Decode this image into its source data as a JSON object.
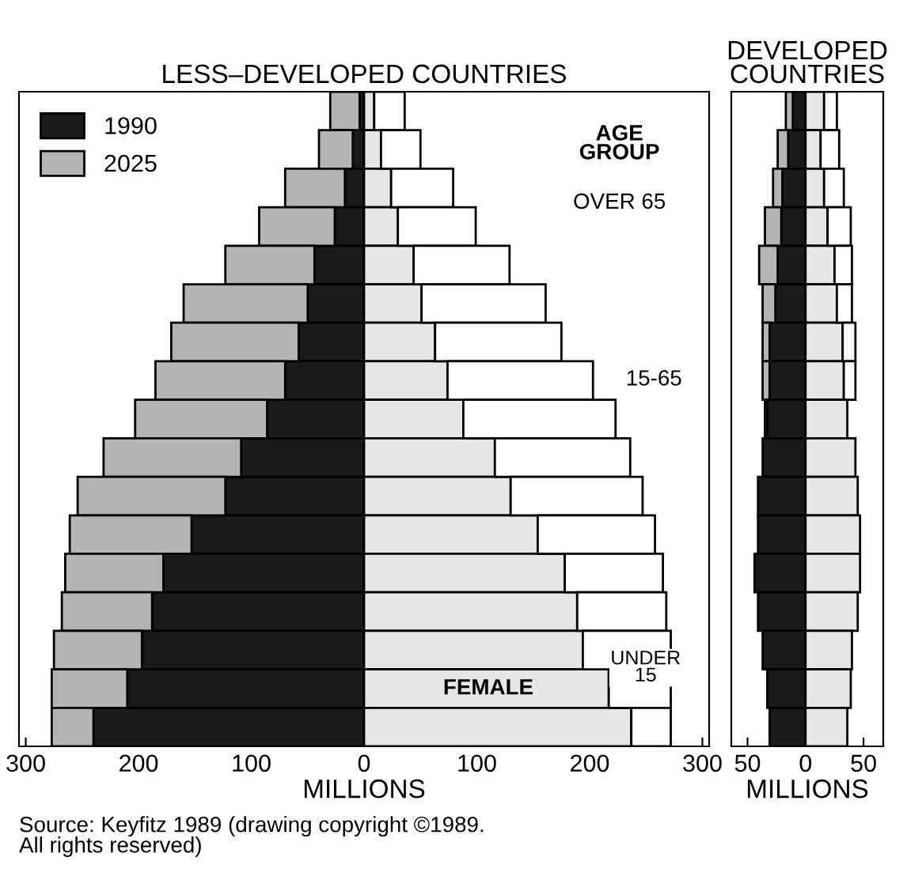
{
  "chart_data": [
    {
      "type": "bar",
      "orientation": "horizontal",
      "title": "LESS–DEVELOPED COUNTRIES",
      "xlabel": "MILLIONS",
      "categories": [
        null,
        null,
        null,
        null,
        null,
        null,
        null,
        null,
        null,
        null,
        null,
        null,
        null,
        null,
        null,
        null,
        null
      ],
      "series": [
        {
          "name": "1990",
          "color": "#1a1a1a",
          "values": [
            -4,
            -10,
            -17,
            -26,
            -44,
            -50,
            -58,
            -70,
            -86,
            -109,
            -123,
            -153,
            -178,
            -188,
            -197,
            -210,
            -240
          ]
        },
        {
          "name": "2025",
          "color": "#b4b4b4",
          "values": [
            -26,
            -30,
            -53,
            -67,
            -79,
            -110,
            -113,
            -115,
            -117,
            -122,
            -131,
            -108,
            -87,
            -80,
            -78,
            -67,
            -37
          ]
        },
        {
          "color": "#e6e6e6",
          "values": [
            9,
            15,
            24,
            30,
            44,
            51,
            63,
            74,
            88,
            116,
            130,
            154,
            178,
            189,
            194,
            217,
            237
          ]
        },
        {
          "color": "#ffffff",
          "values": [
            27,
            35,
            55,
            69,
            85,
            110,
            112,
            129,
            135,
            120,
            117,
            104,
            87,
            79,
            78,
            55,
            35
          ]
        }
      ],
      "stacked": true,
      "xlim": [
        -306,
        306
      ],
      "xticks": [
        {
          "value": -300,
          "label": "300"
        },
        {
          "value": -200,
          "label": "200"
        },
        {
          "value": -100,
          "label": "100"
        },
        0,
        100,
        200,
        300
      ],
      "tick_labels": "x",
      "grid": false,
      "legend": "top left",
      "annotations": [
        "AGE\nGROUP",
        "OVER 65",
        "15-65",
        "UNDER\n15",
        "FEMALE",
        "Source: Keyfitz 1989 (drawing copyright ©1989.\nAll rights reserved)"
      ]
    },
    {
      "type": "bar",
      "orientation": "horizontal",
      "title": "DEVELOPED\nCOUNTRIES",
      "xlabel": "MILLIONS",
      "categories": [
        null,
        null,
        null,
        null,
        null,
        null,
        null,
        null,
        null,
        null,
        null,
        null,
        null,
        null,
        null,
        null,
        null
      ],
      "series": [
        {
          "color": "#1a1a1a",
          "values": [
            -11,
            -15,
            -20,
            -21,
            -24,
            -26,
            -31,
            -31,
            -33,
            -37,
            -41,
            -41,
            -44,
            -41,
            -37,
            -33,
            -31
          ]
        },
        {
          "color": "#b4b4b4",
          "values": [
            -6,
            -9,
            -8,
            -14,
            -16,
            -11,
            -6,
            -6,
            -2,
            null,
            null,
            null,
            null,
            null,
            null,
            null,
            null
          ]
        },
        {
          "color": "#e6e6e6",
          "values": [
            16,
            13,
            16,
            19,
            25,
            27,
            32,
            33,
            36,
            43,
            45,
            47,
            47,
            45,
            40,
            39,
            36
          ]
        },
        {
          "color": "#ffffff",
          "values": [
            11,
            16,
            17,
            20,
            15,
            13,
            11,
            10,
            null,
            null,
            null,
            null,
            null,
            null,
            null,
            null,
            null
          ]
        }
      ],
      "stacked": true,
      "xlim": [
        -64,
        67
      ],
      "xticks": [
        {
          "value": -50,
          "label": "50"
        },
        0,
        50
      ],
      "tick_labels": "x",
      "grid": false
    }
  ]
}
